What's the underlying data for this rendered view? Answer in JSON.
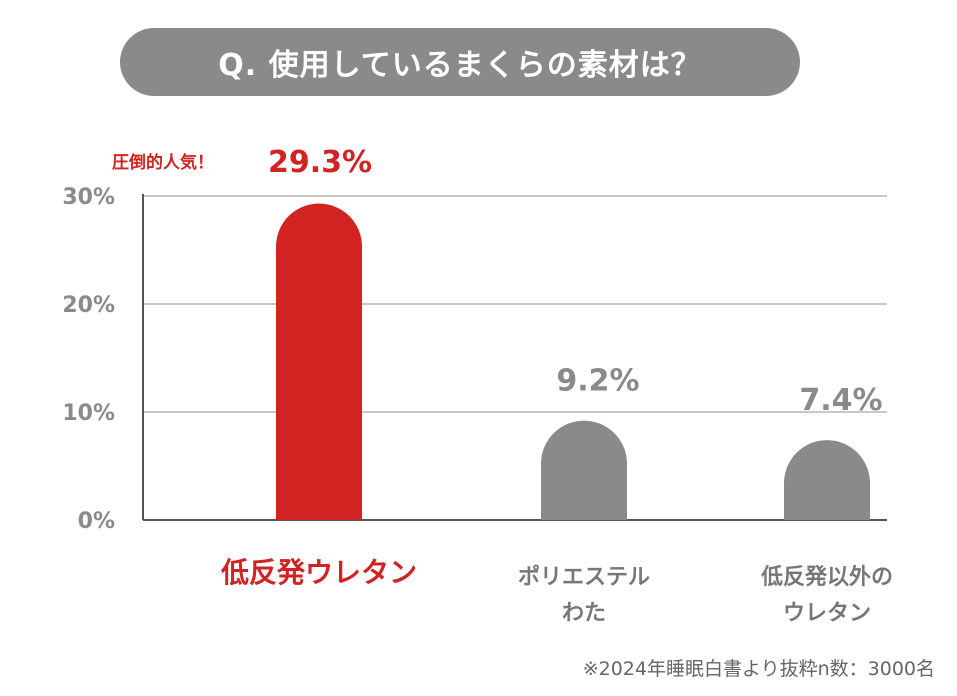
{
  "header": {
    "title": "Q. 使用しているまくらの素材は？"
  },
  "chart_data": {
    "type": "bar",
    "categories": [
      [
        "低反発ウレタン"
      ],
      [
        "ポリエステル",
        "わた"
      ],
      [
        "低反発以外の",
        "ウレタン"
      ]
    ],
    "values": [
      29.3,
      9.2,
      7.4
    ],
    "value_labels": [
      "29.3%",
      "9.2%",
      "7.4%"
    ],
    "highlight_index": 0,
    "highlight_note": "圧倒的人気！",
    "yticks": [
      0,
      10,
      20,
      30
    ],
    "ytick_labels": [
      "0%",
      "10%",
      "20%",
      "30%"
    ],
    "ylim": [
      0,
      30
    ],
    "grid": true
  },
  "colors": {
    "highlight": "#d22323",
    "bar": "#8a8a8a",
    "pill": "#8a8a8a",
    "grid": "#b5b5b5",
    "axis": "#555555"
  },
  "footnote": "※2024年睡眠白書より抜粋n数：3000名"
}
